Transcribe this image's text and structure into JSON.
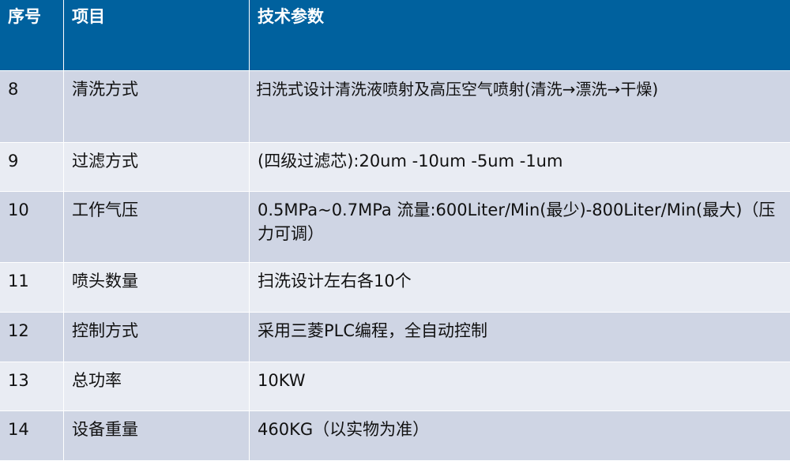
{
  "table": {
    "header": [
      "序号",
      "项目",
      "技术参数"
    ],
    "rows": [
      [
        "8",
        "清洗方式",
        "扫洗式设计清洗液喷射及高压空气喷射(清洗→漂洗→干燥)"
      ],
      [
        "9",
        "过滤方式",
        "(四级过滤芯):20um -10um -5um -1um"
      ],
      [
        "10",
        "工作气压",
        "0.5MPa~0.7MPa 流量:600Liter/Min(最少)-800Liter/Min(最大)（压力可调）"
      ],
      [
        "11",
        "喷头数量",
        "扫洗设计左右各10个"
      ],
      [
        "12",
        "控制方式",
        "采用三菱PLC编程，全自动控制"
      ],
      [
        "13",
        "总功率",
        "10KW"
      ],
      [
        "14",
        "设备重量",
        "460KG（以实物为准）"
      ]
    ]
  }
}
